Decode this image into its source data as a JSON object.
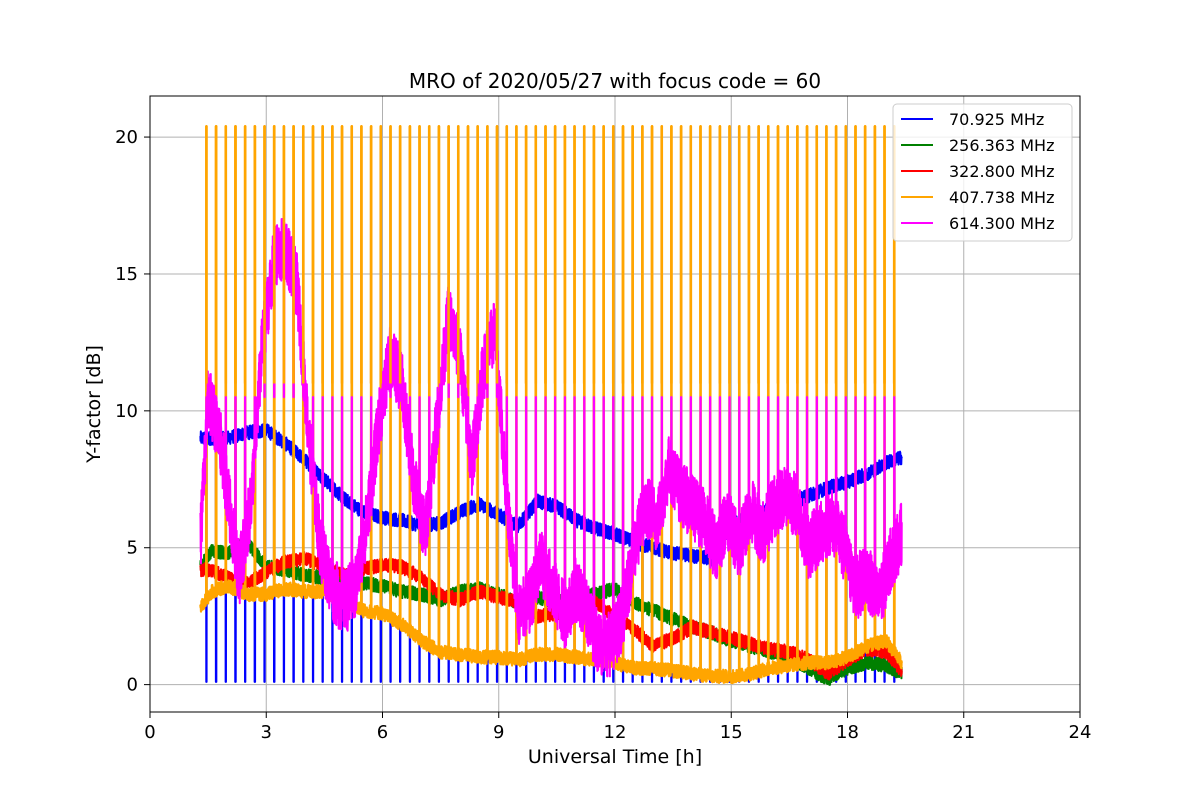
{
  "chart_data": {
    "type": "line",
    "title": "MRO of 2020/05/27 with focus code = 60",
    "xlabel": "Universal Time [h]",
    "ylabel": "Y-factor [dB]",
    "xlim": [
      0,
      24
    ],
    "ylim": [
      -1,
      21.5
    ],
    "xticks": [
      0,
      3,
      6,
      9,
      12,
      15,
      18,
      21,
      24
    ],
    "yticks": [
      0,
      5,
      10,
      15,
      20
    ],
    "grid": true,
    "legend_position": "top-right",
    "calibration_period_h": 0.25,
    "calibration_start_h": 1.45,
    "calibration_end_h": 19.3,
    "series": [
      {
        "name": " 70.925 MHz",
        "color": "#0000ff",
        "calibration_low": 0.1,
        "x": [
          1.3,
          1.6,
          2.0,
          2.5,
          3.0,
          3.5,
          4.0,
          4.5,
          5.0,
          5.5,
          6.0,
          6.5,
          7.0,
          7.5,
          8.0,
          8.5,
          9.0,
          9.5,
          10.0,
          10.5,
          11.0,
          11.5,
          12.0,
          12.5,
          13.0,
          13.5,
          14.0,
          14.5,
          15.0,
          15.5,
          16.0,
          16.5,
          17.0,
          17.5,
          18.0,
          18.5,
          19.0,
          19.4
        ],
        "values": [
          9.0,
          9.0,
          9.0,
          9.2,
          9.3,
          8.8,
          8.2,
          7.5,
          6.8,
          6.3,
          6.1,
          6.0,
          5.8,
          5.9,
          6.3,
          6.6,
          6.2,
          5.8,
          6.7,
          6.5,
          6.0,
          5.7,
          5.5,
          5.2,
          5.0,
          4.8,
          4.7,
          4.6,
          5.8,
          6.2,
          6.4,
          6.6,
          6.9,
          7.2,
          7.4,
          7.7,
          8.1,
          8.3
        ]
      },
      {
        "name": "256.363 MHz",
        "color": "#008000",
        "calibration_low": null,
        "x": [
          1.3,
          1.6,
          2.0,
          2.5,
          3.0,
          3.5,
          4.0,
          4.5,
          5.0,
          5.5,
          6.0,
          6.5,
          7.0,
          7.5,
          8.0,
          8.5,
          9.0,
          9.5,
          10.0,
          10.5,
          11.0,
          11.5,
          12.0,
          12.5,
          13.0,
          13.5,
          14.0,
          14.5,
          15.0,
          15.5,
          16.0,
          16.5,
          17.0,
          17.5,
          18.0,
          18.5,
          19.0,
          19.4
        ],
        "values": [
          4.3,
          4.9,
          4.8,
          5.2,
          4.3,
          4.2,
          4.0,
          3.9,
          3.8,
          3.7,
          3.6,
          3.4,
          3.3,
          3.1,
          3.4,
          3.5,
          3.3,
          3.0,
          3.2,
          3.0,
          3.2,
          3.3,
          3.5,
          3.0,
          2.7,
          2.4,
          2.1,
          1.9,
          1.6,
          1.4,
          1.2,
          1.0,
          0.6,
          0.2,
          0.6,
          0.8,
          0.7,
          0.4
        ]
      },
      {
        "name": "322.800 MHz",
        "color": "#ff0000",
        "calibration_low": null,
        "x": [
          1.3,
          1.6,
          2.0,
          2.5,
          3.0,
          3.5,
          4.0,
          4.5,
          5.0,
          5.5,
          6.0,
          6.5,
          7.0,
          7.5,
          8.0,
          8.5,
          9.0,
          9.5,
          10.0,
          10.5,
          11.0,
          11.5,
          12.0,
          12.5,
          13.0,
          13.5,
          14.0,
          14.5,
          15.0,
          15.5,
          16.0,
          16.5,
          17.0,
          17.5,
          18.0,
          18.5,
          19.0,
          19.4
        ],
        "values": [
          4.2,
          4.2,
          3.9,
          3.7,
          4.1,
          4.5,
          4.6,
          4.3,
          4.0,
          4.2,
          4.4,
          4.3,
          3.9,
          3.3,
          3.1,
          3.4,
          3.2,
          3.0,
          2.5,
          2.6,
          2.9,
          3.0,
          2.5,
          2.0,
          1.4,
          1.7,
          2.1,
          1.9,
          1.7,
          1.5,
          1.3,
          1.2,
          0.9,
          0.4,
          0.9,
          1.3,
          1.2,
          0.5
        ]
      },
      {
        "name": "407.738 MHz",
        "color": "#ffa500",
        "calibration_high": 20.4,
        "calibration_low": 1.3,
        "x": [
          1.3,
          1.6,
          2.0,
          2.5,
          3.0,
          3.5,
          4.0,
          4.5,
          5.0,
          5.5,
          6.0,
          6.5,
          7.0,
          7.5,
          8.0,
          8.5,
          9.0,
          9.5,
          10.0,
          10.5,
          11.0,
          11.5,
          12.0,
          12.5,
          13.0,
          13.5,
          14.0,
          14.5,
          15.0,
          15.5,
          16.0,
          16.5,
          17.0,
          17.5,
          18.0,
          18.5,
          19.0,
          19.4
        ],
        "values": [
          2.8,
          3.4,
          3.6,
          3.3,
          3.3,
          3.5,
          3.4,
          3.4,
          3.1,
          2.7,
          2.6,
          2.2,
          1.6,
          1.2,
          1.1,
          1.0,
          1.0,
          0.9,
          1.1,
          1.1,
          1.0,
          0.9,
          0.8,
          0.6,
          0.6,
          0.5,
          0.4,
          0.3,
          0.3,
          0.4,
          0.6,
          0.7,
          0.8,
          0.8,
          1.0,
          1.4,
          1.6,
          0.8
        ]
      },
      {
        "name": "614.300 MHz",
        "color": "#ff00ff",
        "calibration_high": 10.5,
        "calibration_low": null,
        "x": [
          1.3,
          1.5,
          1.8,
          2.0,
          2.3,
          2.6,
          2.9,
          3.2,
          3.5,
          3.8,
          4.1,
          4.4,
          4.7,
          5.0,
          5.3,
          5.6,
          5.9,
          6.2,
          6.5,
          6.8,
          7.1,
          7.4,
          7.7,
          8.0,
          8.3,
          8.6,
          8.9,
          9.2,
          9.5,
          9.8,
          10.1,
          10.4,
          10.7,
          11.0,
          11.3,
          11.6,
          11.9,
          12.2,
          12.5,
          12.8,
          13.1,
          13.4,
          13.7,
          14.0,
          14.3,
          14.6,
          14.9,
          15.2,
          15.5,
          15.8,
          16.1,
          16.4,
          16.7,
          17.0,
          17.3,
          17.6,
          17.9,
          18.2,
          18.5,
          18.8,
          19.1,
          19.4
        ],
        "values": [
          5.2,
          10.5,
          9.0,
          7.0,
          4.0,
          6.5,
          12.5,
          15.5,
          16.0,
          14.5,
          9.0,
          5.0,
          3.5,
          3.0,
          3.5,
          6.0,
          9.5,
          12.0,
          11.0,
          7.5,
          5.5,
          9.5,
          13.5,
          12.0,
          8.0,
          11.5,
          13.0,
          7.0,
          2.5,
          3.0,
          4.5,
          3.5,
          2.5,
          3.5,
          2.5,
          1.5,
          1.5,
          2.5,
          5.0,
          6.5,
          6.0,
          8.0,
          7.0,
          6.5,
          6.0,
          5.0,
          6.0,
          5.0,
          6.5,
          5.5,
          6.5,
          7.0,
          6.5,
          5.0,
          5.5,
          6.0,
          5.0,
          3.5,
          4.0,
          3.0,
          4.5,
          5.5
        ]
      }
    ]
  }
}
